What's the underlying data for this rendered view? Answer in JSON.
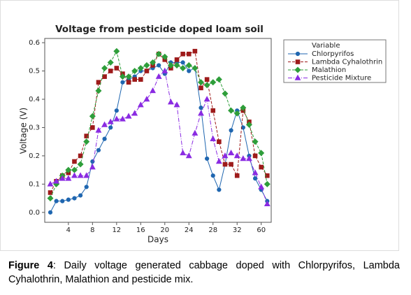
{
  "chart_data": {
    "type": "line",
    "title": "Voltage from pesticide doped loam soil",
    "x_label": "Days",
    "y_label": "Voltage (V)",
    "legend_title": "Variable",
    "legend": "right",
    "categories": [
      null,
      null,
      null,
      "4",
      null,
      null,
      null,
      "8",
      null,
      null,
      null,
      "12",
      null,
      null,
      null,
      "16",
      null,
      null,
      null,
      "20",
      null,
      null,
      null,
      "24",
      null,
      null,
      null,
      "28",
      null,
      null,
      null,
      "32",
      null,
      null,
      null,
      "60",
      null
    ],
    "ylim": [
      -0.035,
      0.615
    ],
    "yticks": [
      {
        "value": 0,
        "label": "0.0"
      },
      0.1,
      0.2,
      0.3,
      0.4,
      0.5,
      0.6
    ],
    "series": [
      {
        "name": "Chlorpyrifos",
        "color": "#1f66b0",
        "marker": "circle",
        "dash": "solid",
        "values": [
          0.0,
          0.04,
          0.04,
          0.045,
          0.05,
          0.06,
          0.09,
          0.18,
          0.22,
          0.26,
          0.3,
          0.36,
          0.46,
          0.47,
          0.48,
          0.5,
          0.5,
          0.51,
          0.52,
          0.49,
          0.53,
          0.53,
          0.53,
          0.5,
          0.51,
          0.37,
          0.19,
          0.13,
          0.08,
          0.17,
          0.29,
          0.36,
          0.3,
          0.2,
          0.12,
          0.08,
          0.04
        ]
      },
      {
        "name": "Lambda Cyhalothrin",
        "color": "#9e1b1b",
        "marker": "square",
        "dash": "dashed",
        "values": [
          0.07,
          0.11,
          0.13,
          0.14,
          0.18,
          0.2,
          0.27,
          0.3,
          0.46,
          0.48,
          0.5,
          0.51,
          0.49,
          0.46,
          0.47,
          0.47,
          0.5,
          0.52,
          0.56,
          0.54,
          0.51,
          0.54,
          0.56,
          0.56,
          0.57,
          0.44,
          0.47,
          0.36,
          0.25,
          0.17,
          0.17,
          0.13,
          0.36,
          0.32,
          0.2,
          0.16,
          0.13
        ]
      },
      {
        "name": "Malathion",
        "color": "#2e9e3a",
        "marker": "diamond",
        "dash": "dashed",
        "values": [
          0.05,
          0.1,
          0.13,
          0.15,
          0.15,
          0.17,
          0.25,
          0.34,
          0.43,
          0.51,
          0.53,
          0.57,
          0.48,
          0.48,
          0.5,
          0.51,
          0.52,
          0.53,
          0.56,
          0.55,
          0.52,
          0.52,
          0.51,
          0.52,
          0.51,
          0.46,
          0.45,
          0.46,
          0.47,
          0.42,
          0.36,
          0.35,
          0.37,
          0.31,
          0.25,
          0.21,
          0.1
        ]
      },
      {
        "name": "Pesticide Mixture",
        "color": "#8a2be2",
        "marker": "triangle",
        "dash": "dashdot",
        "values": [
          0.1,
          0.11,
          0.12,
          0.12,
          0.13,
          0.13,
          0.13,
          0.16,
          0.29,
          0.31,
          0.32,
          0.33,
          0.33,
          0.34,
          0.35,
          0.38,
          0.4,
          0.43,
          0.48,
          0.5,
          0.39,
          0.38,
          0.21,
          0.2,
          0.28,
          0.35,
          0.4,
          0.26,
          0.18,
          0.2,
          0.21,
          0.2,
          0.19,
          0.19,
          0.14,
          0.09,
          0.03
        ]
      }
    ]
  },
  "caption": {
    "label": "Figure 4",
    "text": ": Daily voltage generated cabbage doped with Chlorpyrifos, Lambda Cyhalothrin, Malathion and pesticide mix."
  }
}
